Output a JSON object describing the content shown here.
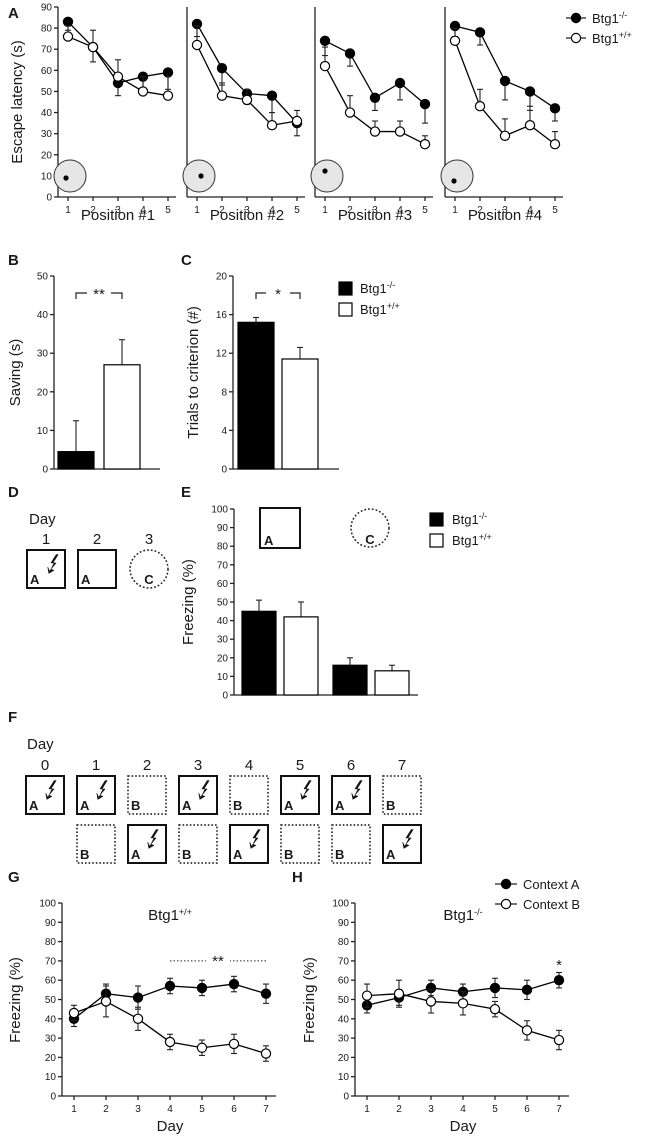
{
  "chart_data": [
    {
      "id": "A",
      "type": "line",
      "panel_label": "A",
      "ylabel": "Escape latency (s)",
      "ylim": [
        0,
        90
      ],
      "yticks": [
        0,
        10,
        20,
        30,
        40,
        50,
        60,
        70,
        80,
        90
      ],
      "x": [
        1,
        2,
        3,
        4,
        5
      ],
      "legend": {
        "placement": "top-right",
        "entries": [
          {
            "base": "Btg1",
            "sup": "-/-",
            "marker": "filled"
          },
          {
            "base": "Btg1",
            "sup": "+/+",
            "marker": "open"
          }
        ]
      },
      "subplots": [
        {
          "title": "Position #1",
          "platform": "left",
          "series": [
            {
              "name": "Btg1-/-",
              "values": [
                83,
                71,
                54,
                57,
                59
              ],
              "err": [
                4,
                7,
                6,
                6,
                8
              ]
            },
            {
              "name": "Btg1+/+",
              "values": [
                76,
                71,
                57,
                50,
                48
              ],
              "err": [
                5,
                8,
                8,
                7,
                9
              ]
            }
          ]
        },
        {
          "title": "Position #2",
          "platform": "center",
          "series": [
            {
              "name": "Btg1-/-",
              "values": [
                82,
                61,
                49,
                48,
                35
              ],
              "err": [
                6,
                8,
                5,
                8,
                6
              ]
            },
            {
              "name": "Btg1+/+",
              "values": [
                72,
                48,
                46,
                34,
                36
              ],
              "err": [
                9,
                6,
                5,
                6,
                5
              ]
            }
          ]
        },
        {
          "title": "Position #3",
          "platform": "top-left",
          "series": [
            {
              "name": "Btg1-/-",
              "values": [
                74,
                68,
                47,
                54,
                44
              ],
              "err": [
                7,
                6,
                6,
                8,
                9
              ]
            },
            {
              "name": "Btg1+/+",
              "values": [
                62,
                40,
                31,
                31,
                25
              ],
              "err": [
                9,
                8,
                5,
                5,
                4
              ]
            }
          ]
        },
        {
          "title": "Position #4",
          "platform": "bottom-left",
          "series": [
            {
              "name": "Btg1-/-",
              "values": [
                81,
                78,
                55,
                50,
                42
              ],
              "err": [
                5,
                6,
                9,
                9,
                6
              ]
            },
            {
              "name": "Btg1+/+",
              "values": [
                74,
                43,
                29,
                34,
                25
              ],
              "err": [
                6,
                8,
                8,
                9,
                6
              ]
            }
          ]
        }
      ]
    },
    {
      "id": "B",
      "type": "bar",
      "panel_label": "B",
      "ylabel": "Saving (s)",
      "ylim": [
        0,
        50
      ],
      "yticks": [
        0,
        10,
        20,
        30,
        40,
        50
      ],
      "bars": [
        {
          "group": "Btg1-/-",
          "value": 4.5,
          "err": 8,
          "fill": "#000000"
        },
        {
          "group": "Btg1+/+",
          "value": 27,
          "err": 6.5,
          "fill": "#ffffff"
        }
      ],
      "annotation": "**"
    },
    {
      "id": "C",
      "type": "bar",
      "panel_label": "C",
      "ylabel": "Trials to criterion (#)",
      "ylim": [
        0,
        20
      ],
      "yticks": [
        0,
        4,
        8,
        12,
        16,
        20
      ],
      "bars": [
        {
          "group": "Btg1-/-",
          "value": 15.2,
          "err": 0.5,
          "fill": "#000000"
        },
        {
          "group": "Btg1+/+",
          "value": 11.4,
          "err": 1.2,
          "fill": "#ffffff"
        }
      ],
      "annotation": "*",
      "legend": {
        "placement": "right",
        "entries": [
          {
            "base": "Btg1",
            "sup": "-/-",
            "fill": "#000000"
          },
          {
            "base": "Btg1",
            "sup": "+/+",
            "fill": "#ffffff"
          }
        ]
      }
    },
    {
      "id": "E",
      "type": "bar",
      "panel_label": "E",
      "ylabel": "Freezing (%)",
      "ylim": [
        0,
        100
      ],
      "yticks": [
        0,
        10,
        20,
        30,
        40,
        50,
        60,
        70,
        80,
        90,
        100
      ],
      "context_labels": [
        "A",
        "C"
      ],
      "groups": [
        {
          "context": "A",
          "bars": [
            {
              "value": 45,
              "err": 6,
              "fill": "#000000"
            },
            {
              "value": 42,
              "err": 8,
              "fill": "#ffffff"
            }
          ]
        },
        {
          "context": "C",
          "bars": [
            {
              "value": 16,
              "err": 4,
              "fill": "#000000"
            },
            {
              "value": 13,
              "err": 3,
              "fill": "#ffffff"
            }
          ]
        }
      ],
      "legend": {
        "placement": "top-right",
        "entries": [
          {
            "base": "Btg1",
            "sup": "-/-",
            "fill": "#000000"
          },
          {
            "base": "Btg1",
            "sup": "+/+",
            "fill": "#ffffff"
          }
        ]
      }
    },
    {
      "id": "G",
      "type": "line",
      "panel_label": "G",
      "title": {
        "base": "Btg1",
        "sup": "+/+"
      },
      "xlabel": "Day",
      "ylabel": "Freezing (%)",
      "ylim": [
        0,
        100
      ],
      "yticks": [
        0,
        10,
        20,
        30,
        40,
        50,
        60,
        70,
        80,
        90,
        100
      ],
      "x": [
        1,
        2,
        3,
        4,
        5,
        6,
        7
      ],
      "series": [
        {
          "name": "Context A",
          "marker": "filled",
          "values": [
            40,
            53,
            51,
            57,
            56,
            58,
            53
          ],
          "err": [
            4,
            5,
            6,
            4,
            4,
            4,
            5
          ]
        },
        {
          "name": "Context B",
          "marker": "open",
          "values": [
            43,
            49,
            40,
            28,
            25,
            27,
            22
          ],
          "err": [
            4,
            8,
            6,
            4,
            4,
            5,
            4
          ]
        }
      ],
      "annotation": {
        "text": "**",
        "x_from": 4,
        "x_to": 7,
        "y": 70
      }
    },
    {
      "id": "H",
      "type": "line",
      "panel_label": "H",
      "title": {
        "base": "Btg1",
        "sup": "-/-"
      },
      "xlabel": "Day",
      "ylabel": "Freezing (%)",
      "ylim": [
        0,
        100
      ],
      "yticks": [
        0,
        10,
        20,
        30,
        40,
        50,
        60,
        70,
        80,
        90,
        100
      ],
      "x": [
        1,
        2,
        3,
        4,
        5,
        6,
        7
      ],
      "series": [
        {
          "name": "Context A",
          "marker": "filled",
          "values": [
            47,
            51,
            56,
            54,
            56,
            55,
            60
          ],
          "err": [
            4,
            4,
            4,
            4,
            5,
            5,
            4
          ]
        },
        {
          "name": "Context B",
          "marker": "open",
          "values": [
            52,
            53,
            49,
            48,
            45,
            34,
            29
          ],
          "err": [
            6,
            7,
            6,
            6,
            4,
            5,
            5
          ]
        }
      ],
      "annotation": {
        "text": "*",
        "x": 7,
        "y": 68
      },
      "legend": {
        "placement": "top-right",
        "entries": [
          "Context A",
          "Context B"
        ]
      }
    }
  ],
  "schematics": {
    "D": {
      "panel_label": "D",
      "heading": "Day",
      "days": [
        {
          "day": "1",
          "context": "A",
          "shock": true,
          "shape": "box"
        },
        {
          "day": "2",
          "context": "A",
          "shock": false,
          "shape": "box"
        },
        {
          "day": "3",
          "context": "C",
          "shock": false,
          "shape": "circle"
        }
      ]
    },
    "F": {
      "panel_label": "F",
      "heading": "Day",
      "days": [
        "0",
        "1",
        "2",
        "3",
        "4",
        "5",
        "6",
        "7"
      ],
      "row1": [
        {
          "context": "A",
          "shock": true,
          "style": "solid"
        },
        {
          "context": "A",
          "shock": true,
          "style": "solid"
        },
        {
          "context": "B",
          "shock": false,
          "style": "dotted"
        },
        {
          "context": "A",
          "shock": true,
          "style": "solid"
        },
        {
          "context": "B",
          "shock": false,
          "style": "dotted"
        },
        {
          "context": "A",
          "shock": true,
          "style": "solid"
        },
        {
          "context": "A",
          "shock": true,
          "style": "solid"
        },
        {
          "context": "B",
          "shock": false,
          "style": "dotted"
        }
      ],
      "row2": [
        null,
        {
          "context": "B",
          "shock": false,
          "style": "dotted"
        },
        {
          "context": "A",
          "shock": true,
          "style": "solid"
        },
        {
          "context": "B",
          "shock": false,
          "style": "dotted"
        },
        {
          "context": "A",
          "shock": true,
          "style": "solid"
        },
        {
          "context": "B",
          "shock": false,
          "style": "dotted"
        },
        {
          "context": "B",
          "shock": false,
          "style": "dotted"
        },
        {
          "context": "A",
          "shock": true,
          "style": "solid"
        }
      ]
    }
  }
}
